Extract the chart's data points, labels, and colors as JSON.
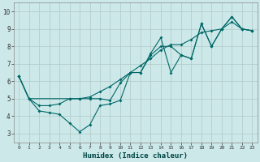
{
  "title": "",
  "xlabel": "Humidex (Indice chaleur)",
  "xlim": [
    -0.5,
    23.5
  ],
  "ylim": [
    2.5,
    10.5
  ],
  "bg_color": "#cce8e8",
  "grid_color": "#b0c8c8",
  "line_color": "#006868",
  "line1_x": [
    0,
    1,
    2,
    3,
    4,
    5,
    6,
    7,
    8,
    9,
    10,
    11,
    12,
    13,
    14,
    15,
    16,
    17,
    18,
    19,
    20,
    21,
    22,
    23
  ],
  "line1_y": [
    6.3,
    5.0,
    4.3,
    4.2,
    4.1,
    3.6,
    3.1,
    3.5,
    4.6,
    4.7,
    4.9,
    6.5,
    6.5,
    7.6,
    8.5,
    6.5,
    7.5,
    7.3,
    9.3,
    8.0,
    9.0,
    9.7,
    9.0,
    8.9
  ],
  "line2_x": [
    0,
    1,
    5,
    6,
    7,
    8,
    9,
    10,
    11,
    12,
    13,
    14,
    15,
    16,
    17,
    18,
    19,
    20,
    21,
    22,
    23
  ],
  "line2_y": [
    6.3,
    5.0,
    5.0,
    5.0,
    5.0,
    5.0,
    4.9,
    5.9,
    6.5,
    6.5,
    7.5,
    8.0,
    8.0,
    7.5,
    7.3,
    9.3,
    8.0,
    9.0,
    9.7,
    9.0,
    8.9
  ],
  "line3_x": [
    0,
    1,
    2,
    3,
    4,
    5,
    6,
    7,
    8,
    9,
    10,
    11,
    12,
    13,
    14,
    15,
    16,
    17,
    18,
    19,
    20,
    21,
    22,
    23
  ],
  "line3_y": [
    6.3,
    5.0,
    4.6,
    4.6,
    4.7,
    5.0,
    5.0,
    5.1,
    5.4,
    5.7,
    6.1,
    6.5,
    6.9,
    7.3,
    7.8,
    8.1,
    8.1,
    8.4,
    8.8,
    8.9,
    9.0,
    9.4,
    9.0,
    8.9
  ]
}
